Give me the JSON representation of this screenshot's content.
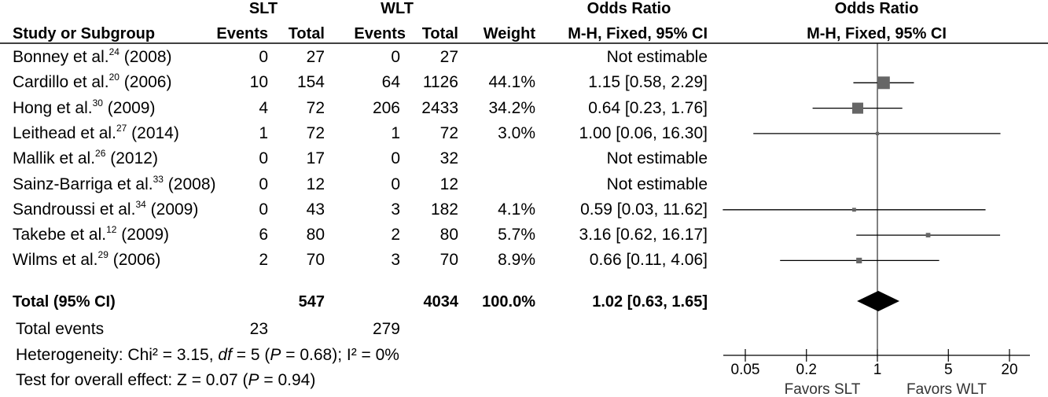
{
  "headers": {
    "slt_group": "SLT",
    "wlt_group": "WLT",
    "or_group_left": "Odds Ratio",
    "or_group_right": "Odds Ratio",
    "study": "Study or Subgroup",
    "events_slt": "Events",
    "total_slt": "Total",
    "events_wlt": "Events",
    "total_wlt": "Total",
    "weight": "Weight",
    "method_left": "M-H, Fixed, 95% CI",
    "method_right": "M-H, Fixed, 95% CI"
  },
  "studies": [
    {
      "name": "Bonney et al.",
      "ref": "24",
      "year": "(2008)",
      "slt_events": "0",
      "slt_total": "27",
      "wlt_events": "0",
      "wlt_total": "27",
      "weight": "",
      "or_text": "Not estimable"
    },
    {
      "name": "Cardillo et al.",
      "ref": "20",
      "year": "(2006)",
      "slt_events": "10",
      "slt_total": "154",
      "wlt_events": "64",
      "wlt_total": "1126",
      "weight": "44.1%",
      "or_text": "1.15 [0.58, 2.29]"
    },
    {
      "name": "Hong et al.",
      "ref": "30",
      "year": "(2009)",
      "slt_events": "4",
      "slt_total": "72",
      "wlt_events": "206",
      "wlt_total": "2433",
      "weight": "34.2%",
      "or_text": "0.64 [0.23, 1.76]"
    },
    {
      "name": "Leithead et al.",
      "ref": "27",
      "year": "(2014)",
      "slt_events": "1",
      "slt_total": "72",
      "wlt_events": "1",
      "wlt_total": "72",
      "weight": "3.0%",
      "or_text": "1.00 [0.06, 16.30]"
    },
    {
      "name": "Mallik et al.",
      "ref": "26",
      "year": "(2012)",
      "slt_events": "0",
      "slt_total": "17",
      "wlt_events": "0",
      "wlt_total": "32",
      "weight": "",
      "or_text": "Not estimable"
    },
    {
      "name": "Sainz-Barriga et al.",
      "ref": "33",
      "year": "(2008)",
      "slt_events": "0",
      "slt_total": "12",
      "wlt_events": "0",
      "wlt_total": "12",
      "weight": "",
      "or_text": "Not estimable"
    },
    {
      "name": "Sandroussi et al.",
      "ref": "34",
      "year": "(2009)",
      "slt_events": "0",
      "slt_total": "43",
      "wlt_events": "3",
      "wlt_total": "182",
      "weight": "4.1%",
      "or_text": "0.59 [0.03, 11.62]"
    },
    {
      "name": "Takebe et al.",
      "ref": "12",
      "year": "(2009)",
      "slt_events": "6",
      "slt_total": "80",
      "wlt_events": "2",
      "wlt_total": "80",
      "weight": "5.7%",
      "or_text": "3.16 [0.62, 16.17]"
    },
    {
      "name": "Wilms et al.",
      "ref": "29",
      "year": "(2006)",
      "slt_events": "2",
      "slt_total": "70",
      "wlt_events": "3",
      "wlt_total": "70",
      "weight": "8.9%",
      "or_text": "0.66 [0.11, 4.06]"
    }
  ],
  "total": {
    "label": "Total (95% CI)",
    "slt_total": "547",
    "wlt_total": "4034",
    "weight": "100.0%",
    "or_text": "1.02 [0.63, 1.65]"
  },
  "events": {
    "label": "Total events",
    "slt": "23",
    "wlt": "279"
  },
  "heterogeneity": {
    "prefix": "Heterogeneity: Chi² = 3.15, ",
    "df_label": "df",
    "df_rest": " = 5 (",
    "p_label": "P",
    "p_rest": " = 0.68); I² = 0%"
  },
  "overall": {
    "prefix": "Test for overall effect: Z = 0.07 (",
    "p_label": "P",
    "p_rest": " = 0.94)"
  },
  "chart_data": {
    "type": "forest",
    "scale": "log",
    "xlim": [
      0.05,
      20
    ],
    "ticks": [
      {
        "value": 0.05,
        "label": "0.05"
      },
      {
        "value": 0.2,
        "label": "0.2"
      },
      {
        "value": 1,
        "label": "1"
      },
      {
        "value": 5,
        "label": "5"
      },
      {
        "value": 20,
        "label": "20"
      }
    ],
    "favors_left": "Favors SLT",
    "favors_right": "Favors WLT",
    "points": [
      null,
      {
        "or": 1.15,
        "lo": 0.58,
        "hi": 2.29,
        "weight": 44.1
      },
      {
        "or": 0.64,
        "lo": 0.23,
        "hi": 1.76,
        "weight": 34.2
      },
      {
        "or": 1.0,
        "lo": 0.06,
        "hi": 16.3,
        "weight": 3.0
      },
      null,
      null,
      {
        "or": 0.59,
        "lo": 0.03,
        "hi": 11.62,
        "weight": 4.1
      },
      {
        "or": 3.16,
        "lo": 0.62,
        "hi": 16.17,
        "weight": 5.7
      },
      {
        "or": 0.66,
        "lo": 0.11,
        "hi": 4.06,
        "weight": 8.9
      }
    ],
    "pooled": {
      "or": 1.02,
      "lo": 0.63,
      "hi": 1.65
    },
    "colors": {
      "marker": "#666666",
      "line": "#000000",
      "diamond": "#000000"
    }
  }
}
